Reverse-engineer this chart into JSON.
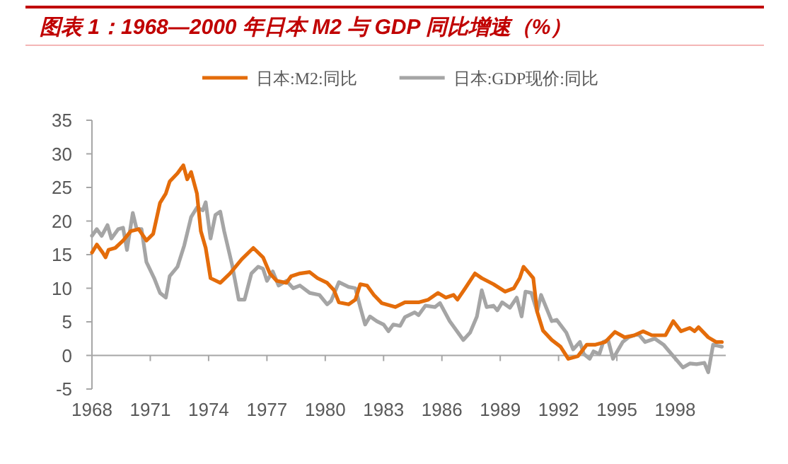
{
  "chart_data": {
    "type": "line",
    "title": "图表 1：1968—2000 年日本 M2 与 GDP 同比增速（%）",
    "legend": "top",
    "grid": false,
    "line_style": "solid",
    "marker": "none",
    "xlim": [
      1968,
      2000.6
    ],
    "xticks": [
      1968,
      1971,
      1974,
      1977,
      1980,
      1983,
      1986,
      1989,
      1992,
      1995,
      1998
    ],
    "ylim": [
      -5,
      35
    ],
    "yticks": [
      -5,
      0,
      5,
      10,
      15,
      20,
      25,
      30,
      35
    ],
    "series": [
      {
        "name": "日本:M2:同比",
        "color": "#e46c0a",
        "x": [
          1968.0,
          1968.25,
          1968.55,
          1968.7,
          1968.85,
          1969.2,
          1969.6,
          1970.0,
          1970.4,
          1970.8,
          1971.15,
          1971.5,
          1971.8,
          1972.0,
          1972.4,
          1972.7,
          1972.9,
          1973.1,
          1973.4,
          1973.6,
          1973.85,
          1974.1,
          1974.6,
          1975.1,
          1975.7,
          1976.3,
          1976.8,
          1977.15,
          1977.5,
          1978.0,
          1978.25,
          1978.7,
          1979.2,
          1979.6,
          1980.1,
          1980.45,
          1980.7,
          1981.2,
          1981.55,
          1981.8,
          1982.15,
          1982.5,
          1982.9,
          1983.6,
          1984.1,
          1984.8,
          1985.3,
          1985.8,
          1986.2,
          1986.6,
          1986.8,
          1987.2,
          1987.7,
          1988.05,
          1988.65,
          1989.25,
          1989.7,
          1990.0,
          1990.2,
          1990.5,
          1990.7,
          1990.9,
          1991.2,
          1991.65,
          1992.1,
          1992.5,
          1993.0,
          1993.45,
          1993.9,
          1994.4,
          1994.9,
          1995.4,
          1995.9,
          1996.35,
          1996.8,
          1997.5,
          1997.9,
          1998.3,
          1998.75,
          1999.0,
          1999.2,
          1999.7,
          2000.1,
          2000.4
        ],
        "values": [
          15.3,
          16.5,
          15.3,
          14.6,
          15.7,
          16.0,
          17.1,
          18.5,
          18.8,
          17.1,
          18.1,
          22.7,
          24.1,
          25.9,
          27.1,
          28.3,
          26.2,
          27.3,
          24.1,
          18.5,
          16.0,
          11.5,
          10.8,
          12.2,
          14.3,
          16.0,
          14.6,
          12.2,
          11.1,
          10.8,
          11.8,
          12.2,
          12.4,
          11.5,
          10.8,
          9.7,
          7.9,
          7.6,
          8.3,
          10.6,
          10.4,
          9.0,
          7.8,
          7.2,
          7.9,
          7.9,
          8.3,
          9.3,
          8.6,
          9.0,
          8.3,
          10.0,
          12.2,
          11.5,
          10.6,
          9.5,
          10.0,
          11.5,
          13.2,
          12.2,
          11.5,
          6.5,
          3.7,
          2.3,
          1.3,
          -0.5,
          -0.1,
          1.6,
          1.6,
          2.0,
          3.5,
          2.7,
          3.0,
          3.6,
          3.0,
          3.0,
          5.1,
          3.6,
          4.1,
          3.6,
          4.2,
          2.7,
          2.0,
          2.0
        ]
      },
      {
        "name": "日本:GDP现价:同比",
        "color": "#a5a5a5",
        "x": [
          1968.0,
          1968.25,
          1968.5,
          1968.8,
          1969.0,
          1969.35,
          1969.6,
          1969.8,
          1970.1,
          1970.3,
          1970.55,
          1970.8,
          1971.2,
          1971.5,
          1971.8,
          1972.0,
          1972.4,
          1972.75,
          1973.1,
          1973.4,
          1973.7,
          1973.85,
          1974.1,
          1974.35,
          1974.6,
          1974.8,
          1975.2,
          1975.55,
          1975.85,
          1976.2,
          1976.55,
          1976.8,
          1977.0,
          1977.3,
          1977.6,
          1978.0,
          1978.35,
          1978.7,
          1979.2,
          1979.7,
          1980.1,
          1980.3,
          1980.7,
          1981.2,
          1981.55,
          1981.8,
          1982.05,
          1982.3,
          1982.65,
          1983.0,
          1983.25,
          1983.5,
          1983.85,
          1984.1,
          1984.6,
          1984.8,
          1985.15,
          1985.65,
          1985.9,
          1986.4,
          1987.1,
          1987.45,
          1987.8,
          1988.05,
          1988.3,
          1988.65,
          1988.85,
          1989.1,
          1989.5,
          1989.85,
          1990.1,
          1990.3,
          1990.6,
          1990.9,
          1991.1,
          1991.65,
          1991.9,
          1992.4,
          1992.75,
          1993.1,
          1993.3,
          1993.6,
          1993.8,
          1994.1,
          1994.3,
          1994.55,
          1994.8,
          1995.3,
          1995.6,
          1996.1,
          1996.45,
          1996.95,
          1997.4,
          1997.9,
          1998.4,
          1998.75,
          1999.1,
          1999.5,
          1999.7,
          1999.95,
          2000.4
        ],
        "values": [
          17.8,
          18.8,
          17.8,
          19.4,
          17.4,
          18.8,
          19.0,
          15.7,
          21.2,
          18.8,
          18.8,
          13.9,
          11.5,
          9.3,
          8.6,
          11.8,
          13.2,
          16.4,
          20.6,
          22.0,
          21.6,
          22.8,
          17.4,
          20.9,
          21.4,
          18.5,
          13.6,
          8.3,
          8.3,
          12.2,
          13.2,
          12.9,
          11.1,
          12.5,
          10.4,
          11.1,
          10.0,
          10.4,
          9.3,
          9.0,
          7.6,
          8.1,
          10.9,
          10.2,
          10.0,
          7.2,
          4.6,
          5.8,
          5.1,
          4.6,
          3.6,
          4.6,
          4.4,
          5.7,
          6.4,
          6.0,
          7.4,
          7.2,
          7.8,
          5.1,
          2.3,
          3.4,
          5.8,
          9.7,
          7.2,
          7.4,
          6.7,
          7.9,
          7.1,
          8.6,
          5.8,
          9.5,
          9.3,
          6.5,
          9.0,
          5.1,
          5.3,
          3.4,
          0.9,
          2.0,
          0.2,
          -0.5,
          0.6,
          0.2,
          2.0,
          2.3,
          -0.5,
          2.0,
          2.7,
          3.2,
          2.0,
          2.5,
          1.6,
          -0.1,
          -1.8,
          -1.2,
          -1.3,
          -1.1,
          -2.5,
          1.6,
          1.3
        ]
      }
    ]
  }
}
